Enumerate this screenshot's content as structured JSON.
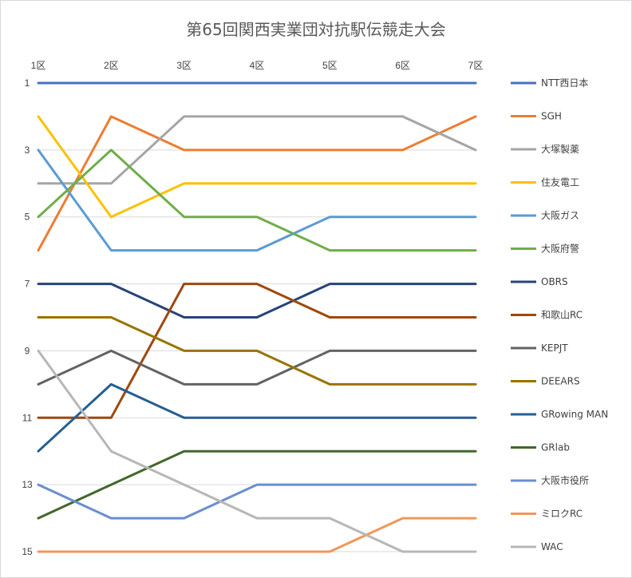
{
  "chart_data": {
    "type": "line",
    "title": "第65回関西実業団対抗駅伝競走大会",
    "xlabel": "",
    "ylabel": "",
    "categories": [
      "1区",
      "2区",
      "3区",
      "4区",
      "5区",
      "6区",
      "7区"
    ],
    "y_reversed": true,
    "ylim": [
      1,
      15
    ],
    "y_ticks": [
      "1",
      "3",
      "5",
      "7",
      "9",
      "11",
      "13",
      "15"
    ],
    "grid": true,
    "legend_position": "right",
    "series": [
      {
        "name": "NTT西日本",
        "color": "#4472C4",
        "values": [
          1,
          1,
          1,
          1,
          1,
          1,
          1
        ]
      },
      {
        "name": "SGH",
        "color": "#ED7D31",
        "values": [
          6,
          2,
          3,
          3,
          3,
          3,
          2
        ]
      },
      {
        "name": "大塚製薬",
        "color": "#A5A5A5",
        "values": [
          4,
          4,
          2,
          2,
          2,
          2,
          3
        ]
      },
      {
        "name": "住友電工",
        "color": "#FFC000",
        "values": [
          2,
          5,
          4,
          4,
          4,
          4,
          4
        ]
      },
      {
        "name": "大阪ガス",
        "color": "#5B9BD5",
        "values": [
          3,
          6,
          6,
          6,
          5,
          5,
          5
        ]
      },
      {
        "name": "大阪府警",
        "color": "#70AD47",
        "values": [
          5,
          3,
          5,
          5,
          6,
          6,
          6
        ]
      },
      {
        "name": "OBRS",
        "color": "#264478",
        "values": [
          7,
          7,
          8,
          8,
          7,
          7,
          7
        ]
      },
      {
        "name": "和歌山RC",
        "color": "#9E480E",
        "values": [
          11,
          11,
          7,
          7,
          8,
          8,
          8
        ]
      },
      {
        "name": "KEPJT",
        "color": "#636363",
        "values": [
          10,
          9,
          10,
          10,
          9,
          9,
          9
        ]
      },
      {
        "name": "DEEARS",
        "color": "#997300",
        "values": [
          8,
          8,
          9,
          9,
          10,
          10,
          10
        ]
      },
      {
        "name": "GRowing MAN",
        "color": "#255E91",
        "values": [
          12,
          10,
          11,
          11,
          11,
          11,
          11
        ]
      },
      {
        "name": "GRlab",
        "color": "#43682B",
        "values": [
          14,
          13,
          12,
          12,
          12,
          12,
          12
        ]
      },
      {
        "name": "大阪市役所",
        "color": "#698ED0",
        "values": [
          13,
          14,
          14,
          13,
          13,
          13,
          13
        ]
      },
      {
        "name": "ミロクRC",
        "color": "#F1975A",
        "values": [
          15,
          15,
          15,
          15,
          15,
          14,
          14
        ]
      },
      {
        "name": "WAC",
        "color": "#B7B7B7",
        "values": [
          9,
          12,
          13,
          14,
          14,
          15,
          15
        ]
      }
    ]
  }
}
